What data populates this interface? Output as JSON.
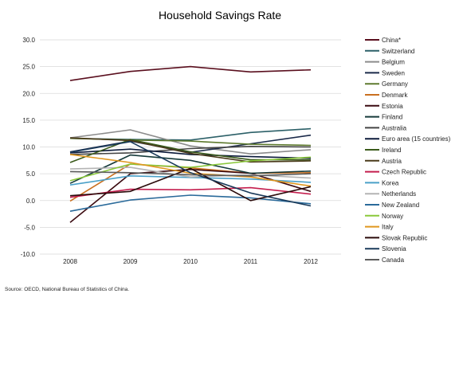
{
  "chart_data": {
    "type": "line",
    "title": "Household Savings Rate",
    "source": "Source: OECD,  National Bureau of Statistics of China.",
    "x": [
      "2008",
      "2009",
      "2010",
      "2011",
      "2012"
    ],
    "ylim": [
      -10,
      30
    ],
    "yticks": [
      "30.0",
      "25.0",
      "20.0",
      "15.0",
      "10.0",
      "5.0",
      "0.0",
      "-5.0",
      "-10.0"
    ],
    "grid": true,
    "legend_position": "right",
    "series": [
      {
        "name": "China*",
        "color": "#5a0f1e",
        "values": [
          22.4,
          24.1,
          25.0,
          24.0,
          24.4
        ]
      },
      {
        "name": "Switzerland",
        "color": "#2c6068",
        "values": [
          11.6,
          11.4,
          11.3,
          12.7,
          13.4
        ]
      },
      {
        "name": "Belgium",
        "color": "#8c8c8c",
        "values": [
          11.7,
          13.2,
          10.2,
          8.7,
          9.5
        ]
      },
      {
        "name": "Sweden",
        "color": "#1b2a4a",
        "values": [
          9.1,
          11.1,
          9.0,
          10.6,
          12.2
        ]
      },
      {
        "name": "Germany",
        "color": "#5e7a2e",
        "values": [
          11.6,
          11.3,
          11.1,
          10.5,
          10.3
        ]
      },
      {
        "name": "Denmark",
        "color": "#c96f1f",
        "values": [
          -0.1,
          6.8,
          6.1,
          5.1,
          5.2
        ]
      },
      {
        "name": "Estonia",
        "color": "#3a0a10",
        "values": [
          -4.1,
          5.0,
          5.8,
          5.1,
          1.7
        ]
      },
      {
        "name": "Finland",
        "color": "#163a3a",
        "values": [
          3.2,
          8.5,
          7.5,
          5.1,
          5.5
        ]
      },
      {
        "name": "Australia",
        "color": "#444444",
        "values": [
          8.6,
          8.9,
          9.7,
          10.1,
          10.0
        ]
      },
      {
        "name": "Euro area (15 countries)",
        "color": "#0c1a3a",
        "values": [
          8.9,
          9.6,
          8.6,
          8.2,
          7.9
        ]
      },
      {
        "name": "Ireland",
        "color": "#3a5a1a",
        "values": [
          7.1,
          11.4,
          9.1,
          7.6,
          7.6
        ]
      },
      {
        "name": "Austria",
        "color": "#4a3a1a",
        "values": [
          11.7,
          11.2,
          8.8,
          7.2,
          7.4
        ]
      },
      {
        "name": "Czech Republic",
        "color": "#c41e4e",
        "values": [
          0.6,
          2.1,
          2.0,
          2.4,
          1.2
        ]
      },
      {
        "name": "Korea",
        "color": "#4aa0c8",
        "values": [
          2.9,
          4.6,
          4.3,
          4.0,
          3.4
        ]
      },
      {
        "name": "Netherlands",
        "color": "#b4b4b4",
        "values": [
          5.9,
          6.2,
          4.4,
          4.8,
          4.2
        ]
      },
      {
        "name": "New Zealand",
        "color": "#2a6a9a",
        "values": [
          -2.0,
          0.1,
          1.0,
          0.5,
          -0.6
        ]
      },
      {
        "name": "Norway",
        "color": "#8ac83a",
        "values": [
          3.7,
          6.8,
          6.2,
          7.4,
          8.1
        ]
      },
      {
        "name": "Italy",
        "color": "#e0961e",
        "values": [
          8.6,
          7.1,
          5.1,
          4.4,
          2.7
        ]
      },
      {
        "name": "Slovak Republic",
        "color": "#2a0a0a",
        "values": [
          0.9,
          1.7,
          6.0,
          0.0,
          2.6
        ]
      },
      {
        "name": "Slovenia",
        "color": "#1a3a5a",
        "values": [
          9.0,
          11.0,
          5.2,
          1.4,
          -1.0
        ]
      },
      {
        "name": "Canada",
        "color": "#5a5a5a",
        "values": [
          5.4,
          5.2,
          4.8,
          4.6,
          5.0
        ]
      }
    ]
  }
}
